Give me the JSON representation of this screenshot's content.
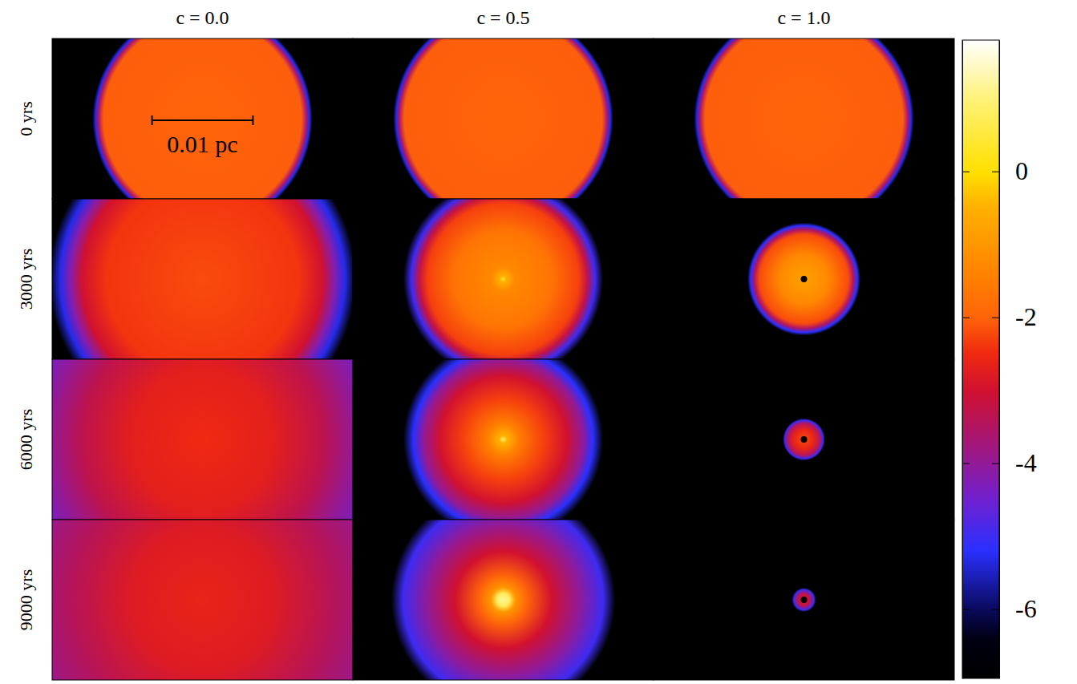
{
  "chart_data": {
    "type": "heatmap",
    "columns": [
      "c = 0.0",
      "c = 0.5",
      "c = 1.0"
    ],
    "rows": [
      "0 yrs",
      "3000 yrs",
      "6000 yrs",
      "9000 yrs"
    ],
    "xlim": [
      -0.0149,
      0.0149
    ],
    "ylim": [
      -0.0079,
      0.0079
    ],
    "tick_labels": false,
    "scale_bar": {
      "label": "0.01 pc",
      "length": 0.01
    },
    "colorbar": {
      "range": [
        -6.95,
        1.8
      ],
      "ticks": [
        0,
        -2,
        -4,
        -6
      ]
    },
    "panels": [
      [
        {
          "center": [
            0,
            0
          ],
          "r": [
            0,
            0.0098,
            0.0103,
            0.0106,
            0.0109
          ],
          "values": [
            -2.0,
            -2.05,
            -3.6,
            -5.3,
            -6.95
          ]
        },
        {
          "center": [
            0,
            0
          ],
          "r": [
            0,
            0.0098,
            0.0103,
            0.0106,
            0.0109
          ],
          "values": [
            -2.0,
            -2.05,
            -3.6,
            -5.3,
            -6.95
          ]
        },
        {
          "center": [
            0,
            0
          ],
          "r": [
            0,
            0.0098,
            0.0103,
            0.0106,
            0.0109
          ],
          "values": [
            -2.0,
            -2.05,
            -3.6,
            -5.3,
            -6.95
          ]
        }
      ],
      [
        {
          "center": [
            0,
            0
          ],
          "r": [
            0,
            0.0095,
            0.0119,
            0.0131,
            0.0141,
            0.0152
          ],
          "values": [
            -2.2,
            -2.4,
            -3.0,
            -4.2,
            -5.3,
            -6.95
          ]
        },
        {
          "center": [
            0,
            0
          ],
          "r": [
            0,
            0.0003,
            0.0012,
            0.0048,
            0.0075,
            0.0083,
            0.0091,
            0.0099
          ],
          "values": [
            0.5,
            -0.5,
            -1.3,
            -1.7,
            -2.3,
            -3.2,
            -5.0,
            -6.95
          ]
        },
        {
          "center": [
            0,
            0
          ],
          "sink": [
            0,
            0
          ],
          "r": [
            0,
            0.0024,
            0.0044,
            0.0049,
            0.0053,
            0.0056
          ],
          "values": [
            -0.8,
            -1.3,
            -2.2,
            -3.5,
            -5.2,
            -6.95
          ]
        }
      ],
      [
        {
          "center": [
            0,
            0
          ],
          "r": [
            0,
            0.0071,
            0.0119,
            0.0151,
            0.0183
          ],
          "values": [
            -2.5,
            -2.7,
            -3.3,
            -4.0,
            -4.6
          ]
        },
        {
          "center": [
            0,
            0
          ],
          "r": [
            0,
            0.0004,
            0.0016,
            0.004,
            0.0063,
            0.0079,
            0.0089,
            0.0099
          ],
          "values": [
            0.8,
            -0.5,
            -1.5,
            -2.3,
            -3.0,
            -4.0,
            -5.2,
            -6.95
          ]
        },
        {
          "center": [
            0,
            0
          ],
          "sink": [
            0,
            0
          ],
          "r": [
            0,
            0.001,
            0.0016,
            0.0019,
            0.0021
          ],
          "values": [
            -2.2,
            -2.6,
            -3.5,
            -5.0,
            -6.95
          ]
        }
      ],
      [
        {
          "center": [
            0,
            0
          ],
          "r": [
            0,
            0.0071,
            0.0127,
            0.0183
          ],
          "values": [
            -2.6,
            -2.8,
            -3.4,
            -4.0
          ]
        },
        {
          "center": [
            0,
            0
          ],
          "r": [
            0,
            0.0006,
            0.0012,
            0.0024,
            0.0048,
            0.0075,
            0.0099,
            0.0111
          ],
          "values": [
            1.2,
            0.8,
            -1.0,
            -2.0,
            -3.0,
            -4.0,
            -5.0,
            -6.95
          ]
        },
        {
          "center": [
            0,
            0
          ],
          "sink": [
            0,
            0
          ],
          "r": [
            0,
            0.0006,
            0.001,
            0.0012
          ],
          "values": [
            -2.8,
            -3.3,
            -5.0,
            -6.95
          ]
        }
      ]
    ]
  }
}
